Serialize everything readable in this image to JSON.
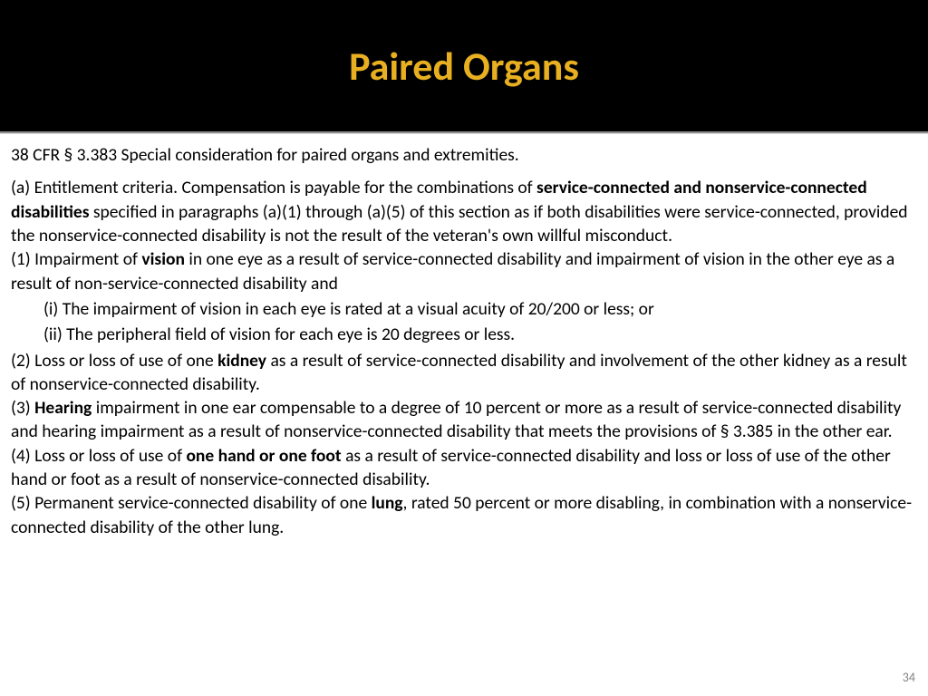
{
  "colors": {
    "header_bg": "#000000",
    "title_color": "#e8b020",
    "body_bg": "#ffffff",
    "text_color": "#000000",
    "page_number_color": "#808080"
  },
  "typography": {
    "title_fontsize_pt": 33,
    "body_fontsize_pt": 15,
    "page_number_fontsize_pt": 10,
    "font_family": "Calibri"
  },
  "title": "Paired Organs",
  "intro": "38 CFR § 3.383 Special consideration for paired organs and extremities.",
  "body": {
    "a_pre": "(a) Entitlement criteria. Compensation is payable for the combinations of ",
    "a_bold": "service-connected and nonservice-connected disabilities",
    "a_post": " specified in paragraphs (a)(1) through (a)(5) of this section as if both disabilities were service-connected, provided the nonservice-connected disability is not the result of the veteran's own willful misconduct.",
    "p1_pre": "(1) Impairment of ",
    "p1_bold": "vision",
    "p1_post": " in one eye as a result of service-connected disability and impairment of vision in the other eye as a result of non-service-connected disability and",
    "p1_i": "(i) The impairment of vision in each eye is rated at a visual acuity of 20/200 or less; or",
    "p1_ii": "(ii) The peripheral field of vision for each eye is 20 degrees or less.",
    "p2_pre": "(2) Loss or loss of use of one ",
    "p2_bold": "kidney",
    "p2_post": " as a result of service-connected disability and involvement of the other kidney as a result of nonservice-connected disability.",
    "p3_pre": "(3) ",
    "p3_bold": "Hearing",
    "p3_post": " impairment in one ear compensable to a degree of 10 percent or more as a result of service-connected disability and hearing impairment as a result of nonservice-connected disability that meets the provisions of § 3.385 in the other ear.",
    "p4_pre": "(4) Loss or loss of use of ",
    "p4_bold": "one hand or one foot",
    "p4_post": " as a result of service-connected disability and loss or loss of use of the other hand or foot as a result of nonservice-connected disability.",
    "p5_pre": "(5) Permanent service-connected disability of one ",
    "p5_bold": "lung",
    "p5_post": ", rated 50 percent or more disabling, in combination with a nonservice-connected disability of the other lung."
  },
  "page_number": "34"
}
